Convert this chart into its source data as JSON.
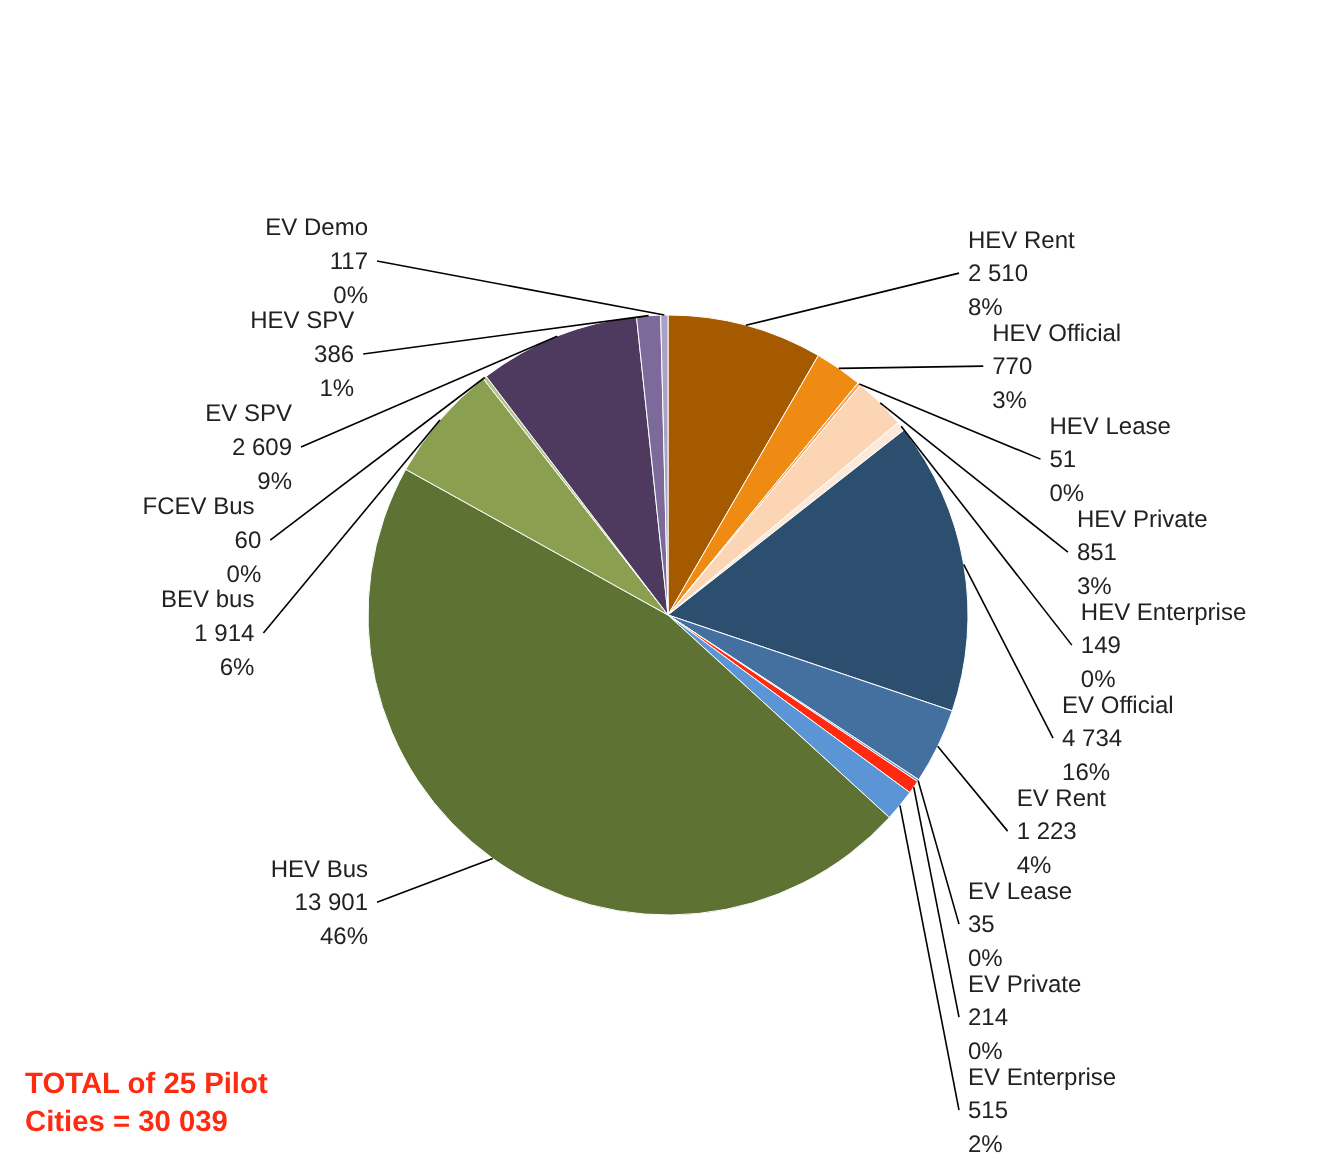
{
  "chart_data": {
    "type": "pie",
    "categories": [
      "HEV Rent",
      "HEV Official",
      "HEV Lease",
      "HEV Private",
      "HEV Enterprise",
      "EV Official",
      "EV Rent",
      "EV Lease",
      "EV Private",
      "EV Enterprise",
      "HEV Bus",
      "BEV bus",
      "FCEV  Bus",
      "EV SPV",
      "HEV SPV",
      "EV Demo"
    ],
    "values": [
      2510,
      770,
      51,
      851,
      149,
      4734,
      1223,
      35,
      214,
      515,
      13901,
      1914,
      60,
      2609,
      386,
      117
    ],
    "value_labels": [
      "2 510\n8%",
      "770\n3%",
      "51\n0%",
      "851\n3%",
      "149\n0%",
      "4 734\n16%",
      "1 223\n4%",
      "35\n0%",
      "214\n0%",
      "515\n2%",
      "13 901\n46%",
      "1 914\n6%",
      "60\n0%",
      "2 609\n9%",
      "386\n1%",
      "117\n0%"
    ],
    "colors": [
      "#a65a00",
      "#ef8a12",
      "#f5a75a",
      "#fcd5b5",
      "#fde9d9",
      "#2c4f70",
      "#4470a0",
      "#6a8fc0",
      "#ff2a10",
      "#5b95d5",
      "#5e7234",
      "#8aa050",
      "#b5c58a",
      "#4e3a5e",
      "#7b6a9a",
      "#a9a0c8"
    ],
    "annotations": [
      "TOTAL of 25 Pilot\nCities = 30 039"
    ]
  }
}
